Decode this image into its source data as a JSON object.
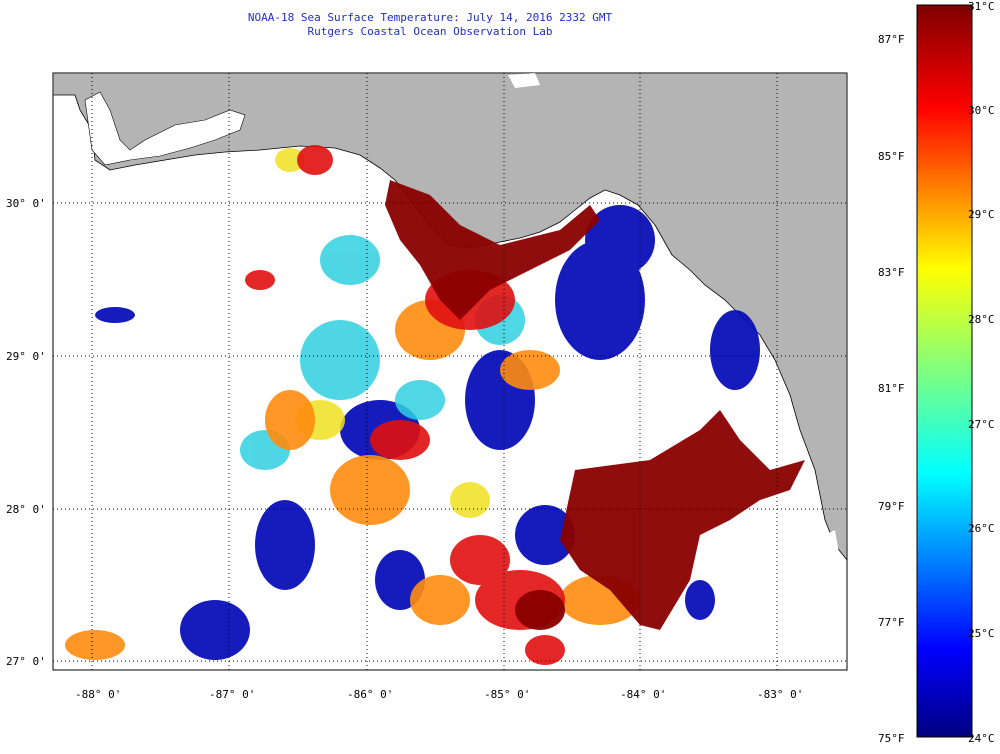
{
  "header": {
    "title": "NOAA-18 Sea Surface Temperature:  July 14, 2016 2332 GMT",
    "subtitle": "Rutgers Coastal Ocean Observation Lab"
  },
  "map": {
    "lat_labels": [
      "30° 0'",
      "29° 0'",
      "28° 0'",
      "27° 0'"
    ],
    "lat_values": [
      30,
      29,
      28,
      27
    ],
    "lon_labels": [
      "-88° 0'",
      "-87° 0'",
      "-86° 0'",
      "-85° 0'",
      "-84° 0'",
      "-83° 0'"
    ],
    "lon_values": [
      -88,
      -87,
      -86,
      -85,
      -84,
      -83
    ],
    "lon_range": [
      -88.28,
      -82.6
    ],
    "lat_range": [
      26.95,
      30.85
    ],
    "land_color": "#b4b4b4",
    "ocean_nodata_color": "#ffffff"
  },
  "colorbar": {
    "range_c": [
      24,
      31
    ],
    "celsius_labels": [
      "31°C",
      "30°C",
      "29°C",
      "28°C",
      "27°C",
      "26°C",
      "25°C",
      "24°C"
    ],
    "celsius_values": [
      31,
      30,
      29,
      28,
      27,
      26,
      25,
      24
    ],
    "fahrenheit_labels": [
      "87°F",
      "85°F",
      "83°F",
      "81°F",
      "79°F",
      "77°F",
      "75°F"
    ],
    "fahrenheit_values": [
      87,
      85,
      83,
      81,
      79,
      77,
      75
    ]
  }
}
